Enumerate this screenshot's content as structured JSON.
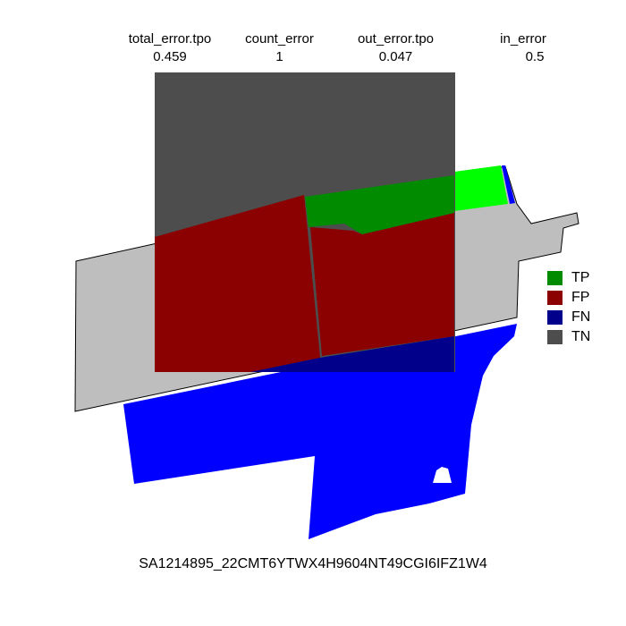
{
  "stats": [
    {
      "label": "total_error.tpo",
      "value": "0.459"
    },
    {
      "label": "count_error",
      "value": "1"
    },
    {
      "label": "out_error.tpo",
      "value": "0.047"
    },
    {
      "label": "in_error",
      "value": "0.5"
    }
  ],
  "legend": [
    {
      "label": "TP",
      "color": "#008b00"
    },
    {
      "label": "FP",
      "color": "#8b0000"
    },
    {
      "label": "FN",
      "color": "#00008b"
    },
    {
      "label": "TN",
      "color": "#4d4d4d"
    }
  ],
  "colors": {
    "parcel": "#bebebe",
    "reference": "#0000ff",
    "bright_tp": "#00ff00",
    "outline": "#000000"
  },
  "footer": "SA1214895_22CMT6YTWX4H9604NT49CGI6IFZ1W4"
}
